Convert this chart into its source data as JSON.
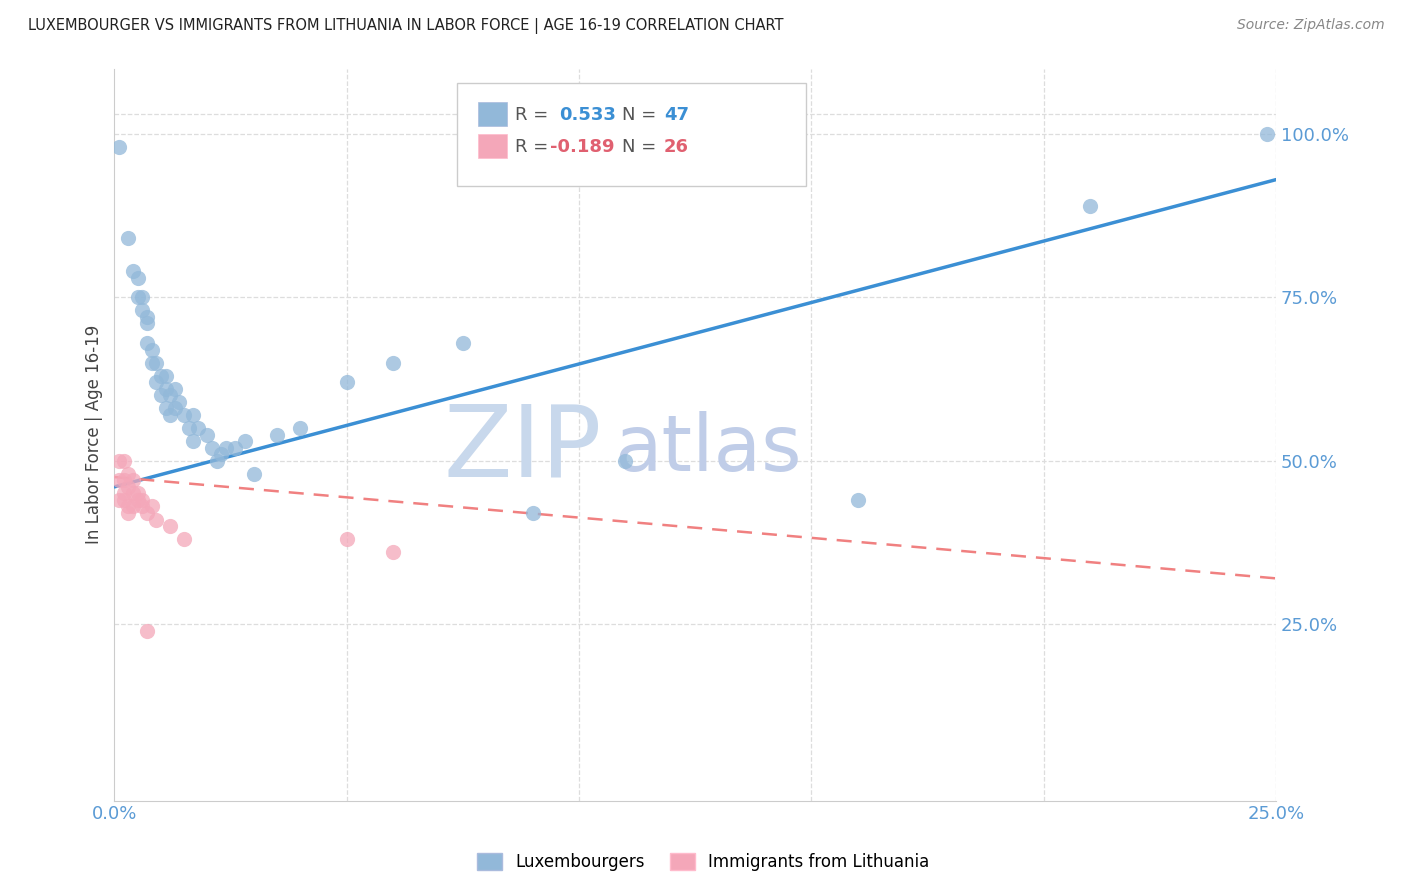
{
  "title": "LUXEMBOURGER VS IMMIGRANTS FROM LITHUANIA IN LABOR FORCE | AGE 16-19 CORRELATION CHART",
  "source": "Source: ZipAtlas.com",
  "ylabel": "In Labor Force | Age 16-19",
  "xlim": [
    0.0,
    0.25
  ],
  "ylim": [
    -0.02,
    1.1
  ],
  "plot_ylim": [
    0.0,
    1.1
  ],
  "x_ticks": [
    0.0,
    0.05,
    0.1,
    0.15,
    0.2,
    0.25
  ],
  "x_tick_labels": [
    "0.0%",
    "",
    "",
    "",
    "",
    "25.0%"
  ],
  "y_ticks_right": [
    0.25,
    0.5,
    0.75,
    1.0
  ],
  "y_tick_labels_right": [
    "25.0%",
    "50.0%",
    "75.0%",
    "100.0%"
  ],
  "blue_color": "#92B8D9",
  "pink_color": "#F4A7B9",
  "blue_line_color": "#3B8FD4",
  "pink_line_color": "#F08080",
  "grid_color": "#DDDDDD",
  "watermark_zip_color": "#C8D8EC",
  "watermark_atlas_color": "#C0CDE8",
  "lux_points": [
    [
      0.001,
      0.98
    ],
    [
      0.003,
      0.84
    ],
    [
      0.004,
      0.79
    ],
    [
      0.005,
      0.78
    ],
    [
      0.005,
      0.75
    ],
    [
      0.006,
      0.75
    ],
    [
      0.006,
      0.73
    ],
    [
      0.007,
      0.72
    ],
    [
      0.007,
      0.71
    ],
    [
      0.007,
      0.68
    ],
    [
      0.008,
      0.67
    ],
    [
      0.008,
      0.65
    ],
    [
      0.009,
      0.65
    ],
    [
      0.009,
      0.62
    ],
    [
      0.01,
      0.63
    ],
    [
      0.01,
      0.6
    ],
    [
      0.011,
      0.63
    ],
    [
      0.011,
      0.61
    ],
    [
      0.011,
      0.58
    ],
    [
      0.012,
      0.6
    ],
    [
      0.012,
      0.57
    ],
    [
      0.013,
      0.61
    ],
    [
      0.013,
      0.58
    ],
    [
      0.014,
      0.59
    ],
    [
      0.015,
      0.57
    ],
    [
      0.016,
      0.55
    ],
    [
      0.017,
      0.57
    ],
    [
      0.017,
      0.53
    ],
    [
      0.018,
      0.55
    ],
    [
      0.02,
      0.54
    ],
    [
      0.021,
      0.52
    ],
    [
      0.022,
      0.5
    ],
    [
      0.023,
      0.51
    ],
    [
      0.024,
      0.52
    ],
    [
      0.026,
      0.52
    ],
    [
      0.028,
      0.53
    ],
    [
      0.03,
      0.48
    ],
    [
      0.035,
      0.54
    ],
    [
      0.04,
      0.55
    ],
    [
      0.05,
      0.62
    ],
    [
      0.06,
      0.65
    ],
    [
      0.075,
      0.68
    ],
    [
      0.09,
      0.42
    ],
    [
      0.11,
      0.5
    ],
    [
      0.16,
      0.44
    ],
    [
      0.21,
      0.89
    ],
    [
      0.248,
      1.0
    ]
  ],
  "lith_points": [
    [
      0.001,
      0.5
    ],
    [
      0.001,
      0.47
    ],
    [
      0.001,
      0.44
    ],
    [
      0.002,
      0.5
    ],
    [
      0.002,
      0.47
    ],
    [
      0.002,
      0.45
    ],
    [
      0.002,
      0.44
    ],
    [
      0.003,
      0.48
    ],
    [
      0.003,
      0.46
    ],
    [
      0.003,
      0.43
    ],
    [
      0.003,
      0.42
    ],
    [
      0.004,
      0.47
    ],
    [
      0.004,
      0.45
    ],
    [
      0.004,
      0.43
    ],
    [
      0.005,
      0.45
    ],
    [
      0.005,
      0.44
    ],
    [
      0.006,
      0.44
    ],
    [
      0.006,
      0.43
    ],
    [
      0.007,
      0.42
    ],
    [
      0.008,
      0.43
    ],
    [
      0.009,
      0.41
    ],
    [
      0.012,
      0.4
    ],
    [
      0.015,
      0.38
    ],
    [
      0.05,
      0.38
    ],
    [
      0.06,
      0.36
    ],
    [
      0.007,
      0.24
    ]
  ],
  "lux_line_x": [
    0.0,
    0.25
  ],
  "lux_line_y": [
    0.46,
    0.93
  ],
  "lith_line_x": [
    0.0,
    0.25
  ],
  "lith_line_y": [
    0.475,
    0.32
  ]
}
